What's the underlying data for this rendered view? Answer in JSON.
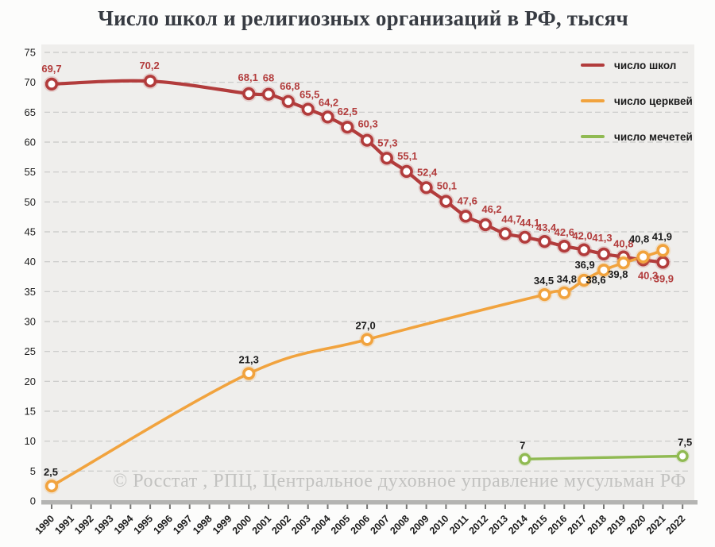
{
  "chart_data": {
    "type": "line",
    "title": "Число школ и религиозных организаций в РФ, тысяч",
    "source": "© Росстат , РПЦ, Центральное духовное управление мусульман РФ",
    "xlabel": "",
    "ylabel": "",
    "xlim": [
      1990,
      2022
    ],
    "ylim": [
      0,
      75
    ],
    "x_ticks": [
      1990,
      1991,
      1992,
      1993,
      1994,
      1995,
      1996,
      1997,
      1998,
      1999,
      2000,
      2001,
      2002,
      2003,
      2004,
      2005,
      2006,
      2007,
      2008,
      2009,
      2010,
      2011,
      2012,
      2013,
      2014,
      2015,
      2016,
      2017,
      2018,
      2019,
      2020,
      2021,
      2022
    ],
    "y_ticks": [
      0,
      5,
      10,
      15,
      20,
      25,
      30,
      35,
      40,
      45,
      50,
      55,
      60,
      65,
      70,
      75
    ],
    "grid": "horizontal-dashed",
    "legend_position": "top-right",
    "plot_bg": "#efeeec",
    "axis_band_color": "#b4b4b2",
    "tick_color": "#767674",
    "series": [
      {
        "name": "число школ",
        "color": "#b23c3c",
        "label_color": "#b23c3c",
        "points": [
          {
            "x": 1990,
            "y": 69.7,
            "label": "69,7",
            "dx": 0,
            "dy": -15
          },
          {
            "x": 1995,
            "y": 70.2,
            "label": "70,2",
            "dx": -1,
            "dy": -15
          },
          {
            "x": 2000,
            "y": 68.1,
            "label": "68,1",
            "dx": -1,
            "dy": -16
          },
          {
            "x": 2001,
            "y": 68,
            "label": "68",
            "dx": 0,
            "dy": -16
          },
          {
            "x": 2002,
            "y": 66.8,
            "label": "66,8",
            "dx": 2,
            "dy": -15
          },
          {
            "x": 2003,
            "y": 65.5,
            "label": "65,5",
            "dx": 2,
            "dy": -14
          },
          {
            "x": 2004,
            "y": 64.2,
            "label": "64,2",
            "dx": 1,
            "dy": -14
          },
          {
            "x": 2005,
            "y": 62.5,
            "label": "62,5",
            "dx": 0,
            "dy": -15
          },
          {
            "x": 2006,
            "y": 60.3,
            "label": "60,3",
            "dx": 1,
            "dy": -16
          },
          {
            "x": 2007,
            "y": 57.3,
            "label": "57,3",
            "dx": 1,
            "dy": -15
          },
          {
            "x": 2008,
            "y": 55.1,
            "label": "55,1",
            "dx": 1,
            "dy": -15
          },
          {
            "x": 2009,
            "y": 52.4,
            "label": "52,4",
            "dx": 1,
            "dy": -15
          },
          {
            "x": 2010,
            "y": 50.1,
            "label": "50,1",
            "dx": 1,
            "dy": -15
          },
          {
            "x": 2011,
            "y": 47.6,
            "label": "47,6",
            "dx": 2,
            "dy": -15
          },
          {
            "x": 2012,
            "y": 46.2,
            "label": "46,2",
            "dx": 8,
            "dy": -15
          },
          {
            "x": 2013,
            "y": 44.7,
            "label": "44,7",
            "dx": 8,
            "dy": -14
          },
          {
            "x": 2014,
            "y": 44.1,
            "label": "44,1",
            "dx": 6,
            "dy": -14
          },
          {
            "x": 2015,
            "y": 43.4,
            "label": "43,4",
            "dx": 2,
            "dy": -13
          },
          {
            "x": 2016,
            "y": 42.6,
            "label": "42,6",
            "dx": 0,
            "dy": -13
          },
          {
            "x": 2017,
            "y": 42.0,
            "label": "42,0",
            "dx": -2,
            "dy": -13
          },
          {
            "x": 2018,
            "y": 41.3,
            "label": "41,3",
            "dx": -2,
            "dy": -16
          },
          {
            "x": 2019,
            "y": 40.8,
            "label": "40,8",
            "dx": 0,
            "dy": -12
          },
          {
            "x": 2020,
            "y": 40.3,
            "label": "40,3",
            "dx": 6,
            "dy": 24
          },
          {
            "x": 2021,
            "y": 39.9,
            "label": "39,9",
            "dx": 1,
            "dy": 25
          }
        ]
      },
      {
        "name": "число церквей",
        "color": "#f1a33e",
        "label_color": "#1b1b1b",
        "points": [
          {
            "x": 1990,
            "y": 2.5,
            "label": "2,5",
            "dx": -1,
            "dy": -13
          },
          {
            "x": 2000,
            "y": 21.3,
            "label": "21,3",
            "dx": 0,
            "dy": -13
          },
          {
            "x": 2006,
            "y": 27.0,
            "label": "27,0",
            "dx": -2,
            "dy": -13
          },
          {
            "x": 2015,
            "y": 34.5,
            "label": "34,5",
            "dx": -1,
            "dy": -13
          },
          {
            "x": 2016,
            "y": 34.8,
            "label": "34,8",
            "dx": 3,
            "dy": -13
          },
          {
            "x": 2017,
            "y": 36.9,
            "label": "36,9",
            "dx": 1,
            "dy": -15
          },
          {
            "x": 2018,
            "y": 38.6,
            "label": "38,6",
            "dx": -10,
            "dy": 17
          },
          {
            "x": 2019,
            "y": 39.8,
            "label": "39,8",
            "dx": -7,
            "dy": 19
          },
          {
            "x": 2020,
            "y": 40.8,
            "label": "40,8",
            "dx": -5,
            "dy": -18
          },
          {
            "x": 2021,
            "y": 41.9,
            "label": "41,9",
            "dx": -1,
            "dy": -13
          }
        ]
      },
      {
        "name": "число мечетей",
        "color": "#90ba52",
        "label_color": "#1b1b1b",
        "points": [
          {
            "x": 2014,
            "y": 7,
            "label": "7",
            "dx": -3,
            "dy": -13
          },
          {
            "x": 2022,
            "y": 7.5,
            "label": "7,5",
            "dx": 3,
            "dy": -13
          }
        ]
      }
    ]
  }
}
